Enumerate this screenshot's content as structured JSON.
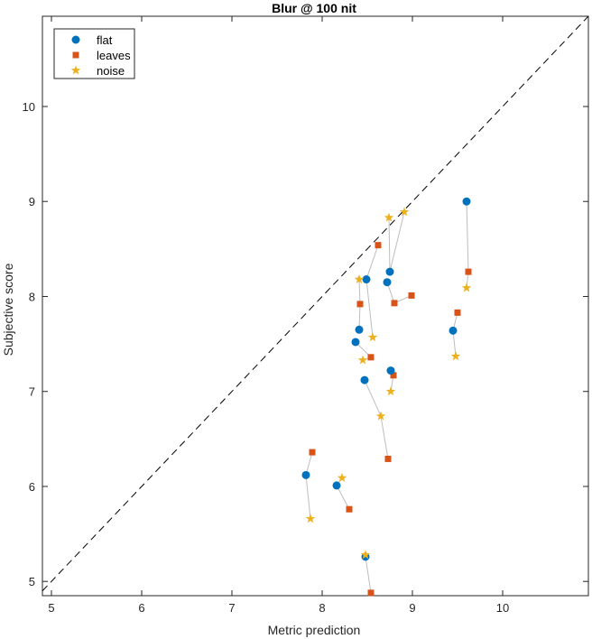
{
  "chart_data": {
    "type": "scatter",
    "title": "Blur @ 100 nit",
    "xlabel": "Metric prediction",
    "ylabel": "Subjective score",
    "xlim": [
      4.9,
      10.95
    ],
    "ylim": [
      4.85,
      10.95
    ],
    "xticks": [
      5,
      6,
      7,
      8,
      9,
      10
    ],
    "yticks": [
      5,
      6,
      7,
      8,
      9,
      10
    ],
    "grid": false,
    "legend_position": "top-left",
    "reference_line": "y = x (dashed)",
    "series": [
      {
        "name": "flat",
        "marker": "circle",
        "color": "#0072BD",
        "x": [
          9.6,
          8.75,
          8.49,
          8.72,
          8.41,
          8.37,
          8.76,
          8.47,
          7.82,
          8.16,
          8.48
        ],
        "y": [
          9.0,
          8.26,
          8.18,
          8.15,
          7.65,
          7.52,
          7.22,
          7.12,
          6.12,
          6.01,
          5.26
        ]
      },
      {
        "name": "leaves",
        "marker": "square",
        "color": "#D95319",
        "x": [
          9.62,
          8.62,
          8.99,
          8.8,
          8.42,
          9.5,
          8.54,
          8.79,
          7.89,
          8.73,
          8.3,
          8.54
        ],
        "y": [
          8.26,
          8.54,
          8.01,
          7.93,
          7.92,
          7.83,
          7.36,
          7.17,
          6.36,
          6.29,
          5.76,
          4.88
        ]
      },
      {
        "name": "noise",
        "marker": "star",
        "color": "#EDB120",
        "x": [
          8.91,
          8.74,
          8.41,
          9.6,
          8.56,
          9.48,
          8.45,
          8.76,
          8.65,
          8.22,
          7.87,
          8.48
        ],
        "y": [
          8.89,
          8.83,
          8.18,
          8.09,
          7.57,
          7.37,
          7.33,
          7.0,
          6.74,
          6.09,
          5.66,
          5.28
        ]
      }
    ],
    "connections": [
      {
        "from": [
          9.6,
          9.0
        ],
        "to": [
          9.62,
          8.26
        ]
      },
      {
        "from": [
          9.62,
          8.26
        ],
        "to": [
          9.6,
          8.09
        ]
      },
      {
        "from": [
          9.45,
          7.64
        ],
        "to": [
          9.5,
          7.83
        ]
      },
      {
        "from": [
          9.45,
          7.64
        ],
        "to": [
          9.48,
          7.37
        ]
      },
      {
        "from": [
          8.75,
          8.26
        ],
        "to": [
          8.74,
          8.83
        ]
      },
      {
        "from": [
          8.75,
          8.26
        ],
        "to": [
          8.91,
          8.89
        ]
      },
      {
        "from": [
          8.49,
          8.18
        ],
        "to": [
          8.62,
          8.54
        ]
      },
      {
        "from": [
          8.49,
          8.18
        ],
        "to": [
          8.56,
          7.57
        ]
      },
      {
        "from": [
          8.72,
          8.15
        ],
        "to": [
          8.8,
          7.93
        ]
      },
      {
        "from": [
          8.8,
          7.93
        ],
        "to": [
          8.99,
          8.01
        ]
      },
      {
        "from": [
          8.41,
          7.65
        ],
        "to": [
          8.42,
          7.92
        ]
      },
      {
        "from": [
          8.42,
          7.92
        ],
        "to": [
          8.41,
          8.18
        ]
      },
      {
        "from": [
          8.37,
          7.52
        ],
        "to": [
          8.54,
          7.36
        ]
      },
      {
        "from": [
          8.54,
          7.36
        ],
        "to": [
          8.45,
          7.33
        ]
      },
      {
        "from": [
          8.76,
          7.22
        ],
        "to": [
          8.79,
          7.17
        ]
      },
      {
        "from": [
          8.79,
          7.17
        ],
        "to": [
          8.76,
          7.0
        ]
      },
      {
        "from": [
          8.47,
          7.12
        ],
        "to": [
          8.65,
          6.74
        ]
      },
      {
        "from": [
          8.65,
          6.74
        ],
        "to": [
          8.73,
          6.29
        ]
      },
      {
        "from": [
          7.82,
          6.12
        ],
        "to": [
          7.89,
          6.36
        ]
      },
      {
        "from": [
          7.82,
          6.12
        ],
        "to": [
          7.87,
          5.66
        ]
      },
      {
        "from": [
          8.16,
          6.01
        ],
        "to": [
          8.22,
          6.09
        ]
      },
      {
        "from": [
          8.16,
          6.01
        ],
        "to": [
          8.3,
          5.76
        ]
      },
      {
        "from": [
          8.48,
          5.26
        ],
        "to": [
          8.48,
          5.28
        ]
      },
      {
        "from": [
          8.48,
          5.26
        ],
        "to": [
          8.54,
          4.88
        ]
      }
    ],
    "extra_flat_points": [
      {
        "x": 9.45,
        "y": 7.64
      }
    ]
  }
}
